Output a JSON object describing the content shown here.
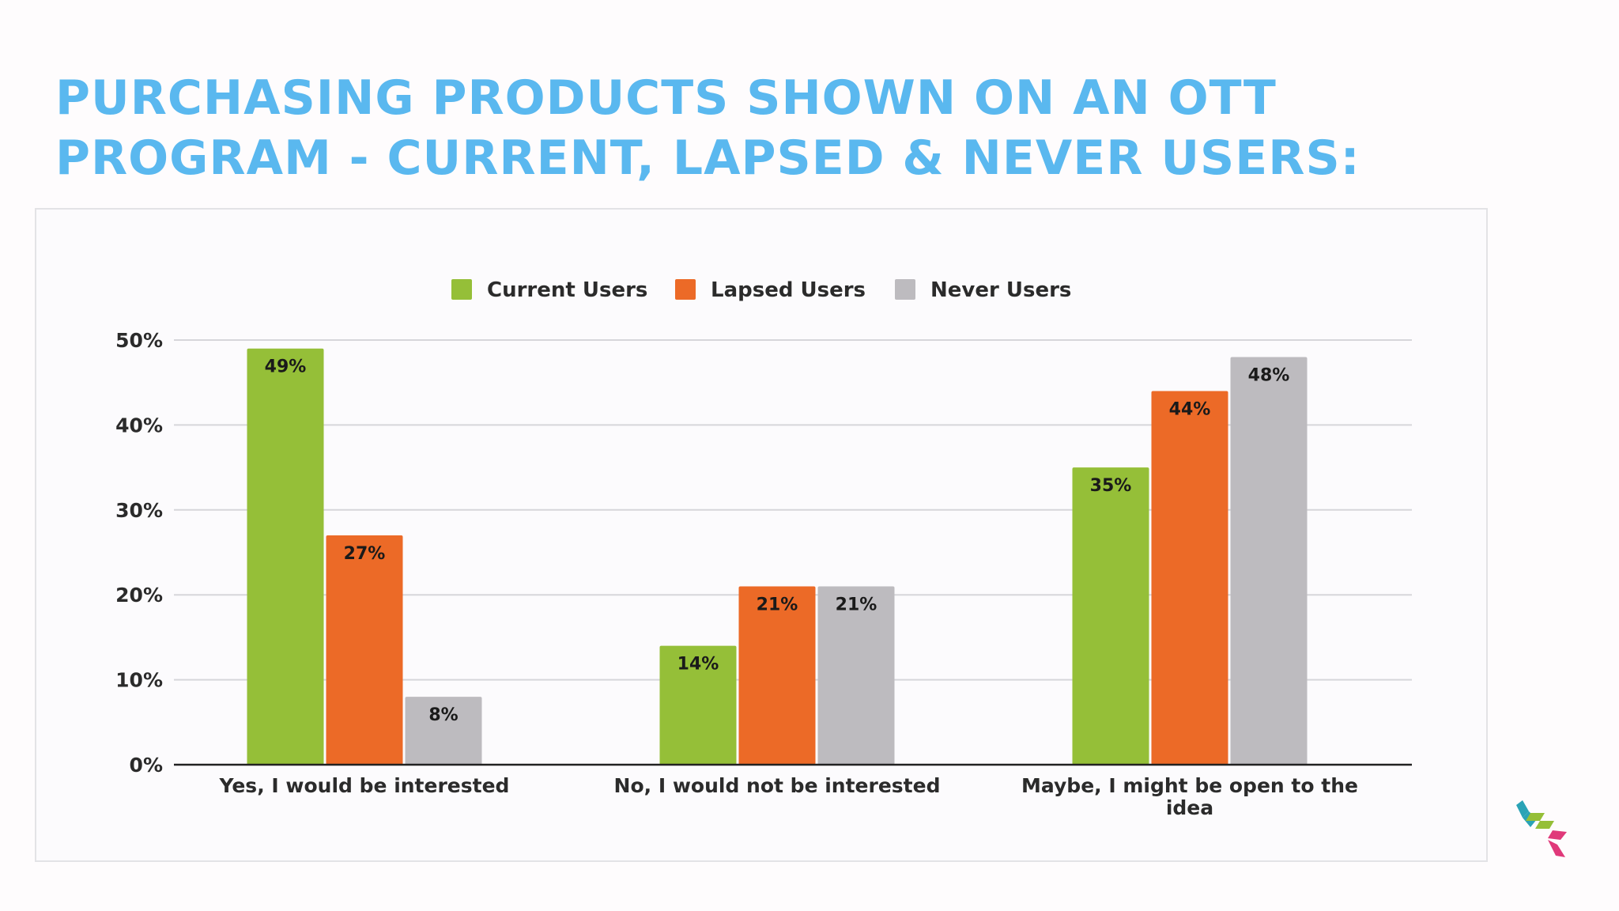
{
  "title": {
    "line1": "PURCHASING PRODUCTS SHOWN ON AN OTT",
    "line2": "PROGRAM - CURRENT, LAPSED & NEVER USERS:"
  },
  "colors": {
    "title": "#5ab8ef",
    "current": "#95bf38",
    "lapsed": "#ec6a27",
    "never": "#bdbbbf",
    "grid": "#d6d6da",
    "axis": "#222222",
    "text": "#2b2b2b"
  },
  "chart_data": {
    "type": "bar",
    "categories": [
      [
        "Yes, I would be interested"
      ],
      [
        "No, I would not be interested"
      ],
      [
        "Maybe, I might be open to the",
        "idea"
      ]
    ],
    "series": [
      {
        "name": "Current Users",
        "color": "#95bf38",
        "values": [
          49,
          14,
          35
        ],
        "labels": [
          "49%",
          "14%",
          "35%"
        ]
      },
      {
        "name": "Lapsed Users",
        "color": "#ec6a27",
        "values": [
          27,
          21,
          44
        ],
        "labels": [
          "27%",
          "21%",
          "44%"
        ]
      },
      {
        "name": "Never Users",
        "color": "#bdbbbf",
        "values": [
          8,
          21,
          48
        ],
        "labels": [
          "8%",
          "21%",
          "48%"
        ]
      }
    ],
    "yticks": [
      0,
      10,
      20,
      30,
      40,
      50
    ],
    "ytick_labels": [
      "0%",
      "10%",
      "20%",
      "30%",
      "40%",
      "50%"
    ],
    "ylim": [
      0,
      50
    ],
    "grid": true,
    "legend_position": "top-center"
  },
  "logo": {
    "name": "cube-logo-icon"
  }
}
